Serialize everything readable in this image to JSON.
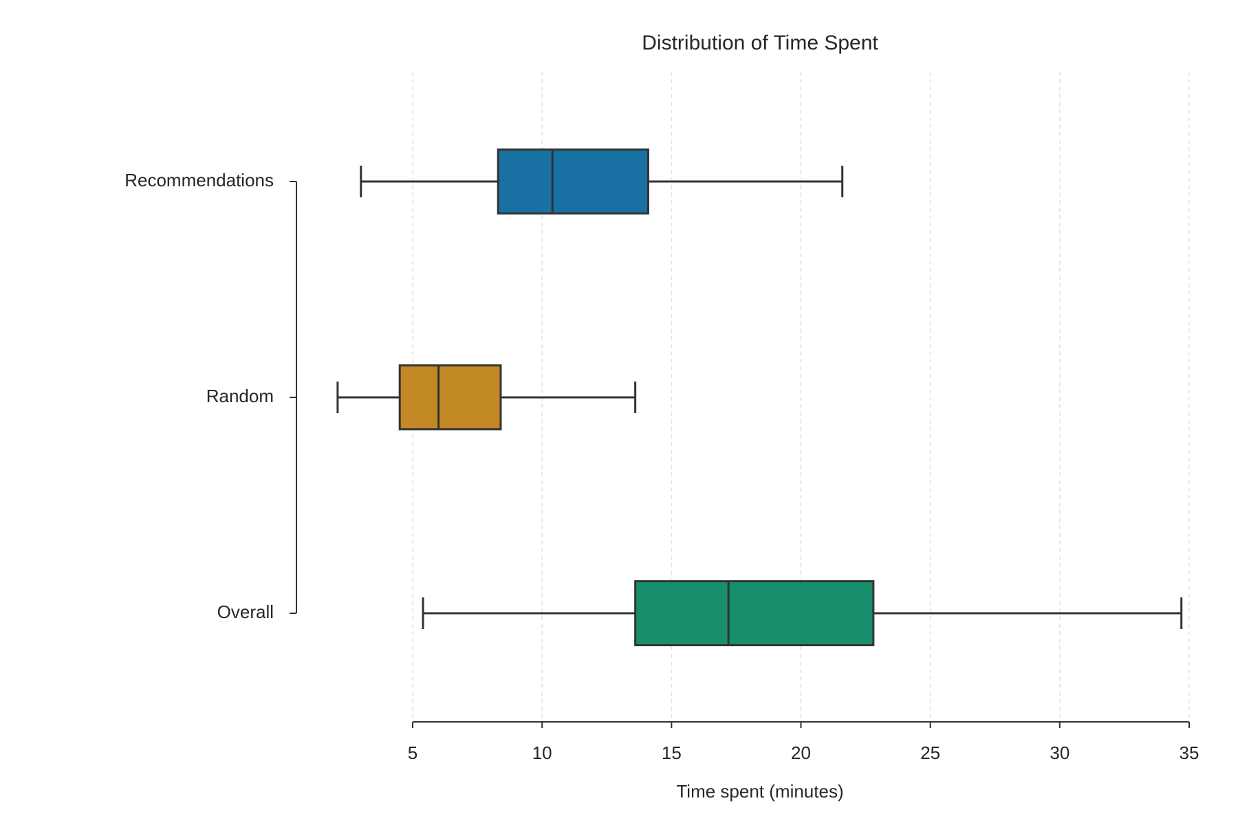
{
  "chart_data": {
    "type": "box",
    "orientation": "horizontal",
    "title": "Distribution of Time Spent",
    "xlabel": "Time spent (minutes)",
    "categories": [
      "Recommendations",
      "Random",
      "Overall"
    ],
    "colors": [
      "#1870a3",
      "#c28823",
      "#178e6c"
    ],
    "boxes": [
      {
        "whislo": 3.0,
        "q1": 8.3,
        "med": 10.4,
        "q3": 14.1,
        "whishi": 21.6
      },
      {
        "whislo": 2.1,
        "q1": 4.5,
        "med": 6.0,
        "q3": 8.4,
        "whishi": 13.6
      },
      {
        "whislo": 5.4,
        "q1": 13.6,
        "med": 17.2,
        "q3": 22.8,
        "whishi": 34.7
      }
    ],
    "xlim": [
      1,
      35.5
    ],
    "xticks": [
      5,
      10,
      15,
      20,
      25,
      30,
      35
    ],
    "grid": true
  }
}
